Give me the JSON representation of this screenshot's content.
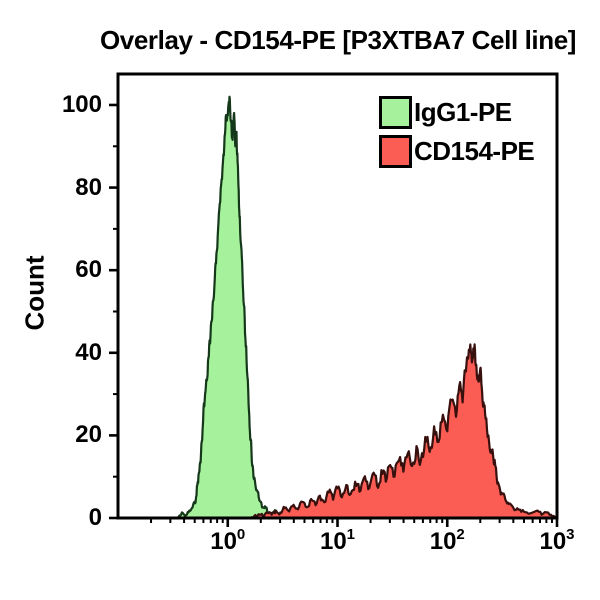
{
  "figure": {
    "background": "#ffffff",
    "axis_color": "#000000"
  },
  "chart_data": {
    "type": "area",
    "subtype": "flow-cytometry-histogram-overlay",
    "title": "Overlay - CD154-PE [P3XTBA7 Cell line]",
    "xlabel": "",
    "ylabel": "Count",
    "xscale": "log",
    "xlim_log": [
      -1,
      3
    ],
    "ylim": [
      0,
      107.5
    ],
    "grid": false,
    "legend_position": "top-right-inside",
    "x_ticks": [
      {
        "log": 0,
        "base": "10",
        "exp": "0"
      },
      {
        "log": 1,
        "base": "10",
        "exp": "1"
      },
      {
        "log": 2,
        "base": "10",
        "exp": "2"
      },
      {
        "log": 3,
        "base": "10",
        "exp": "3"
      }
    ],
    "y_ticks": [
      0,
      20,
      40,
      60,
      80,
      100
    ],
    "y_minor_step": 10,
    "legend": [
      {
        "name": "IgG1-PE",
        "fill": "#a6f19b"
      },
      {
        "name": "CD154-PE",
        "fill": "#fb5d55"
      }
    ],
    "series": [
      {
        "name": "IgG1-PE",
        "fill": "#a6f19b",
        "line": "#16381a",
        "peak_x": 1.05,
        "peak_count": 102,
        "points": [
          [
            -0.47,
            0
          ],
          [
            -0.44,
            0.6
          ],
          [
            -0.41,
            1.2
          ],
          [
            -0.38,
            0.7
          ],
          [
            -0.35,
            1.8
          ],
          [
            -0.32,
            2.6
          ],
          [
            -0.3,
            4
          ],
          [
            -0.285,
            5.5
          ],
          [
            -0.27,
            8.5
          ],
          [
            -0.255,
            13
          ],
          [
            -0.24,
            18
          ],
          [
            -0.225,
            23.5
          ],
          [
            -0.21,
            28.5
          ],
          [
            -0.195,
            33.5
          ],
          [
            -0.18,
            38
          ],
          [
            -0.165,
            43
          ],
          [
            -0.15,
            47.5
          ],
          [
            -0.135,
            52.5
          ],
          [
            -0.118,
            58
          ],
          [
            -0.103,
            64
          ],
          [
            -0.088,
            70
          ],
          [
            -0.073,
            76
          ],
          [
            -0.056,
            82
          ],
          [
            -0.04,
            88
          ],
          [
            -0.025,
            93
          ],
          [
            -0.012,
            97
          ],
          [
            0.004,
            99.5
          ],
          [
            0.016,
            102
          ],
          [
            0.028,
            96
          ],
          [
            0.038,
            92
          ],
          [
            0.05,
            95
          ],
          [
            0.06,
            97
          ],
          [
            0.07,
            90
          ],
          [
            0.08,
            93.5
          ],
          [
            0.09,
            86
          ],
          [
            0.1,
            79.5
          ],
          [
            0.11,
            73
          ],
          [
            0.122,
            66
          ],
          [
            0.134,
            59
          ],
          [
            0.147,
            51.5
          ],
          [
            0.161,
            43.5
          ],
          [
            0.175,
            35.5
          ],
          [
            0.19,
            27.5
          ],
          [
            0.202,
            21
          ],
          [
            0.216,
            16
          ],
          [
            0.23,
            12
          ],
          [
            0.247,
            9
          ],
          [
            0.263,
            6.8
          ],
          [
            0.282,
            5
          ],
          [
            0.307,
            3.6
          ],
          [
            0.332,
            2.4
          ],
          [
            0.36,
            1.6
          ],
          [
            0.385,
            1.1
          ],
          [
            0.42,
            1.5
          ],
          [
            0.46,
            0.8
          ],
          [
            0.5,
            1.2
          ],
          [
            0.55,
            0.6
          ],
          [
            0.6,
            1
          ],
          [
            0.65,
            0.5
          ],
          [
            0.71,
            0.8
          ],
          [
            0.77,
            0.4
          ],
          [
            0.83,
            0.6
          ],
          [
            0.88,
            0.3
          ],
          [
            0.93,
            0
          ]
        ]
      },
      {
        "name": "CD154-PE",
        "fill": "#fb5d55",
        "line": "#38100d",
        "peak_x": 162,
        "peak_count": 42,
        "points": [
          [
            0.2,
            0
          ],
          [
            0.24,
            0.4
          ],
          [
            0.28,
            0.9
          ],
          [
            0.32,
            0.5
          ],
          [
            0.36,
            1.3
          ],
          [
            0.4,
            0.8
          ],
          [
            0.44,
            1.8
          ],
          [
            0.48,
            1.2
          ],
          [
            0.52,
            2.4
          ],
          [
            0.56,
            1.6
          ],
          [
            0.6,
            3.2
          ],
          [
            0.64,
            2.1
          ],
          [
            0.68,
            3.9
          ],
          [
            0.72,
            2.6
          ],
          [
            0.76,
            4.6
          ],
          [
            0.8,
            3.1
          ],
          [
            0.84,
            5.4
          ],
          [
            0.88,
            3.8
          ],
          [
            0.92,
            6.2
          ],
          [
            0.96,
            4.4
          ],
          [
            1.0,
            7.2
          ],
          [
            1.04,
            5
          ],
          [
            1.08,
            8
          ],
          [
            1.12,
            5.8
          ],
          [
            1.16,
            8.8
          ],
          [
            1.2,
            6.4
          ],
          [
            1.24,
            9.6
          ],
          [
            1.28,
            7
          ],
          [
            1.32,
            10.6
          ],
          [
            1.36,
            7.8
          ],
          [
            1.4,
            11.6
          ],
          [
            1.44,
            8.8
          ],
          [
            1.48,
            12.8
          ],
          [
            1.52,
            10
          ],
          [
            1.56,
            14
          ],
          [
            1.6,
            11.2
          ],
          [
            1.64,
            15.6
          ],
          [
            1.68,
            12.6
          ],
          [
            1.72,
            17.4
          ],
          [
            1.76,
            14
          ],
          [
            1.8,
            19.6
          ],
          [
            1.84,
            16
          ],
          [
            1.88,
            22.2
          ],
          [
            1.92,
            18.4
          ],
          [
            1.96,
            25
          ],
          [
            2.0,
            21
          ],
          [
            2.04,
            28.5
          ],
          [
            2.08,
            24.5
          ],
          [
            2.11,
            32
          ],
          [
            2.14,
            28
          ],
          [
            2.165,
            35.5
          ],
          [
            2.185,
            39
          ],
          [
            2.21,
            42
          ],
          [
            2.23,
            38.5
          ],
          [
            2.245,
            40.5
          ],
          [
            2.26,
            37
          ],
          [
            2.28,
            34.5
          ],
          [
            2.3,
            36
          ],
          [
            2.315,
            31.5
          ],
          [
            2.33,
            28
          ],
          [
            2.35,
            24
          ],
          [
            2.375,
            20
          ],
          [
            2.4,
            16.5
          ],
          [
            2.425,
            13
          ],
          [
            2.45,
            10
          ],
          [
            2.475,
            7.6
          ],
          [
            2.5,
            5.8
          ],
          [
            2.53,
            4.4
          ],
          [
            2.56,
            3.4
          ],
          [
            2.6,
            2.6
          ],
          [
            2.65,
            2
          ],
          [
            2.7,
            1.5
          ],
          [
            2.75,
            1.1
          ],
          [
            2.81,
            1.7
          ],
          [
            2.86,
            0.8
          ],
          [
            2.92,
            1.3
          ],
          [
            2.97,
            0.5
          ],
          [
            3.0,
            0.2
          ]
        ]
      }
    ]
  }
}
